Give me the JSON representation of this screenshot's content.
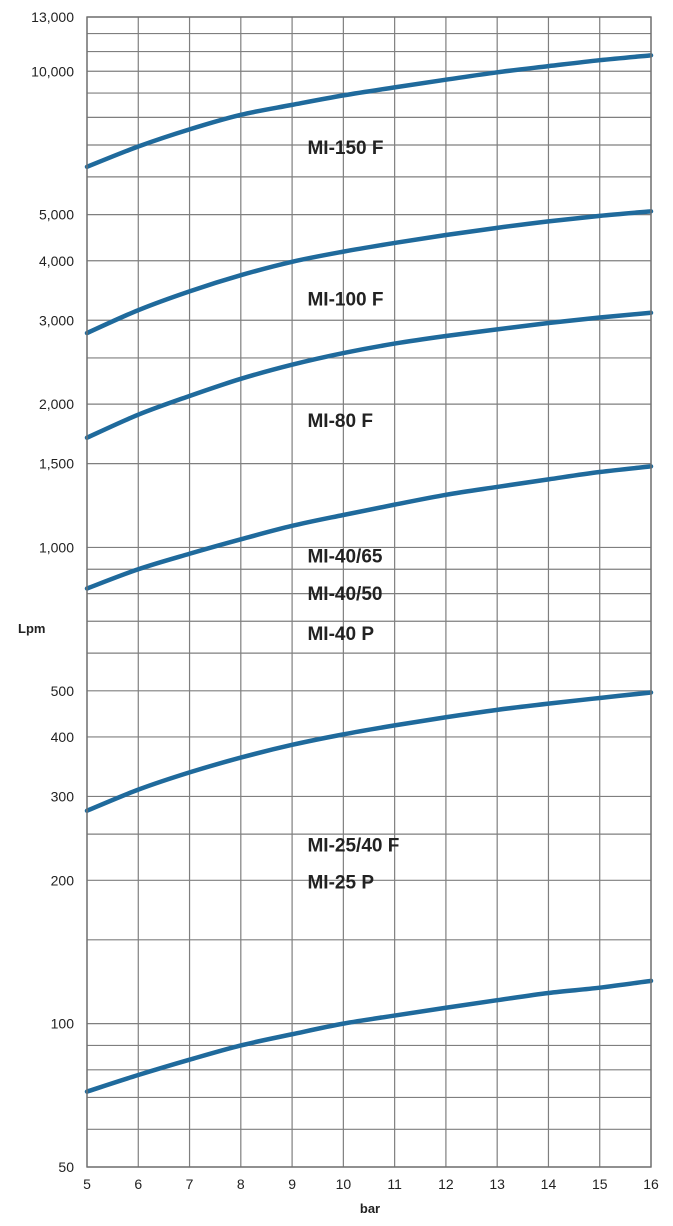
{
  "chart_data": {
    "type": "line",
    "xlabel": "bar",
    "ylabel": "Lpm",
    "xlim": [
      5,
      16
    ],
    "ylim": [
      50,
      13000
    ],
    "yscale": "log",
    "grid": true,
    "x_ticks": [
      5,
      6,
      7,
      8,
      9,
      10,
      11,
      12,
      13,
      14,
      15,
      16
    ],
    "y_ticks": [
      {
        "value": 50,
        "label": "50"
      },
      {
        "value": 100,
        "label": "100"
      },
      {
        "value": 200,
        "label": "200"
      },
      {
        "value": 300,
        "label": "300"
      },
      {
        "value": 400,
        "label": "400"
      },
      {
        "value": 500,
        "label": "500"
      },
      {
        "value": 1000,
        "label": "1,000"
      },
      {
        "value": 1500,
        "label": "1,500"
      },
      {
        "value": 2000,
        "label": "2,000"
      },
      {
        "value": 3000,
        "label": "3,000"
      },
      {
        "value": 4000,
        "label": "4,000"
      },
      {
        "value": 5000,
        "label": "5,000"
      },
      {
        "value": 10000,
        "label": "10,000"
      },
      {
        "value": 13000,
        "label": "13,000"
      }
    ],
    "y_gridlines": [
      50,
      60,
      70,
      80,
      90,
      100,
      150,
      200,
      250,
      300,
      400,
      500,
      600,
      700,
      800,
      900,
      1000,
      1500,
      2000,
      2500,
      3000,
      4000,
      5000,
      6000,
      7000,
      8000,
      9000,
      10000,
      11000,
      12000,
      13000
    ],
    "x": [
      5,
      6,
      7,
      8,
      9,
      10,
      11,
      12,
      13,
      14,
      15,
      16
    ],
    "series": [
      {
        "values": [
          6300,
          6950,
          7550,
          8100,
          8500,
          8900,
          9250,
          9600,
          9950,
          10250,
          10550,
          10800
        ]
      },
      {
        "values": [
          2820,
          3150,
          3450,
          3730,
          3980,
          4180,
          4360,
          4530,
          4690,
          4840,
          4970,
          5080
        ]
      },
      {
        "values": [
          1700,
          1900,
          2080,
          2260,
          2420,
          2560,
          2680,
          2780,
          2870,
          2960,
          3040,
          3110
        ]
      },
      {
        "values": [
          820,
          900,
          970,
          1040,
          1110,
          1170,
          1230,
          1290,
          1340,
          1390,
          1440,
          1480
        ]
      },
      {
        "values": [
          280,
          310,
          337,
          362,
          385,
          405,
          423,
          440,
          456,
          470,
          483,
          496
        ]
      },
      {
        "values": [
          72,
          78,
          84,
          90,
          95,
          100,
          104,
          108,
          112,
          116,
          119,
          123
        ]
      }
    ],
    "annotations": [
      {
        "text": "MI-150 F",
        "x": 9.3,
        "y": 6700
      },
      {
        "text": "MI-100 F",
        "x": 9.3,
        "y": 3220
      },
      {
        "text": "MI-80 F",
        "x": 9.3,
        "y": 1790
      },
      {
        "text": "MI-40/65",
        "x": 9.3,
        "y": 930
      },
      {
        "text": "MI-40/50",
        "x": 9.3,
        "y": 775
      },
      {
        "text": "MI-40 P",
        "x": 9.3,
        "y": 640
      },
      {
        "text": "MI-25/40 F",
        "x": 9.3,
        "y": 230
      },
      {
        "text": "MI-25 P",
        "x": 9.3,
        "y": 192
      }
    ],
    "colors": {
      "line": "#1f6a9c",
      "grid": "#7f7f7f",
      "text": "#222222"
    }
  }
}
